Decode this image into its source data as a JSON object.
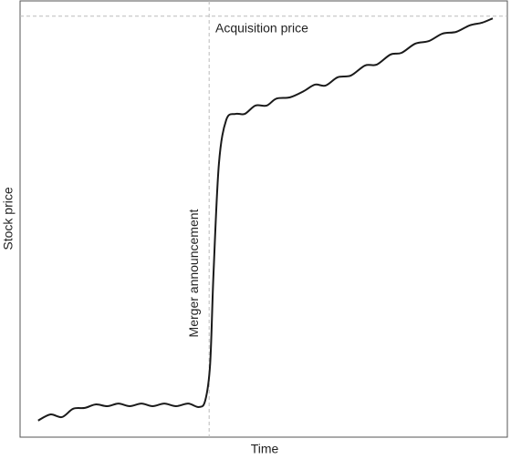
{
  "chart_data": {
    "type": "line",
    "xlabel": "Time",
    "ylabel": "Stock price",
    "x": [
      3.7,
      6.2,
      8.6,
      10.9,
      13.3,
      15.5,
      17.9,
      20.2,
      22.5,
      24.9,
      27.2,
      29.6,
      32.0,
      34.5,
      36.7,
      38.0,
      39.0,
      39.7,
      40.8,
      42.3,
      44.2,
      46.1,
      48.3,
      50.6,
      52.6,
      55.4,
      58.2,
      60.5,
      62.7,
      65.2,
      67.9,
      70.8,
      73.2,
      76.0,
      78.3,
      81.1,
      83.9,
      86.7,
      89.5,
      92.3,
      94.8,
      97.0
    ],
    "values": [
      3.8,
      5.2,
      4.6,
      6.5,
      6.7,
      7.5,
      7.1,
      7.7,
      7.1,
      7.7,
      7.1,
      7.7,
      7.1,
      7.7,
      6.9,
      8.4,
      16.7,
      37.6,
      62.6,
      72.7,
      74.1,
      74.1,
      76.0,
      76.0,
      77.6,
      77.9,
      79.3,
      80.8,
      80.6,
      82.5,
      82.9,
      85.2,
      85.4,
      87.7,
      88.1,
      90.2,
      90.8,
      92.5,
      92.9,
      94.4,
      95.0,
      96.0
    ],
    "color": "#1a1a1a",
    "xlim": [
      0,
      100
    ],
    "ylim": [
      0,
      100
    ],
    "grid": false,
    "annotations": [
      {
        "text": "Acquisition price",
        "y": 96.5
      },
      {
        "text": "Merger announcement",
        "x": 38.8
      }
    ]
  }
}
